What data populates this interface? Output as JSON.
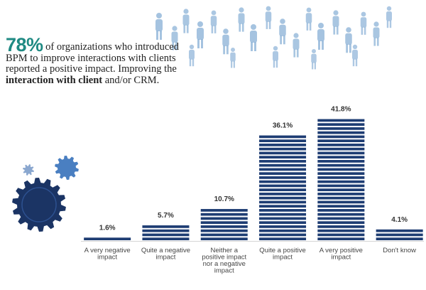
{
  "headline": {
    "percent": "78%",
    "text_part1": "of organizations who introduced BPM to improve interactions with clients reported a positive impact. Improving the",
    "text_bold": "interaction with client",
    "text_part2": "and/or CRM."
  },
  "colors": {
    "bar": "#1e3d73",
    "accent": "#1f8a83",
    "gear_dark": "#1b3464",
    "gear_mid": "#4a7fc1",
    "gear_light": "#8aa7cf",
    "silhouette": "#8fb4d8"
  },
  "chart_data": {
    "type": "bar",
    "title": "",
    "xlabel": "",
    "ylabel": "",
    "ylim": [
      0,
      45
    ],
    "categories": [
      [
        "A very negative",
        "impact"
      ],
      [
        "Quite a negative",
        "impact"
      ],
      [
        "Neither a",
        "positive impact",
        "nor a negative",
        "impact"
      ],
      [
        "Quite a positive",
        "impact"
      ],
      [
        "A very positive",
        "impact"
      ],
      [
        "Don't know"
      ]
    ],
    "values": [
      1.6,
      5.7,
      10.7,
      36.1,
      41.8,
      4.1
    ],
    "value_labels": [
      "1.6%",
      "5.7%",
      "10.7%",
      "36.1%",
      "41.8%",
      "4.1%"
    ]
  }
}
